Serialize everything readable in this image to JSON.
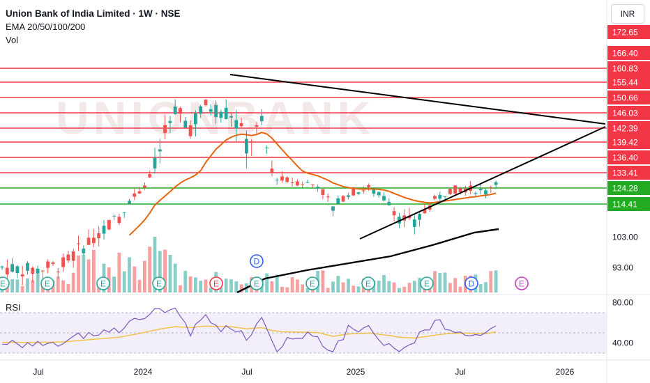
{
  "header": {
    "title": "Union Bank of India Limited · 1W · NSE",
    "indicator": "EMA 20/50/100/200",
    "volume_label": "Vol"
  },
  "currency_button": "INR",
  "rsi_pane": {
    "label": "RSI",
    "ticks": [
      "80.00",
      "40.00"
    ]
  },
  "watermark": "UNIONBANK",
  "chart_data": {
    "type": "candlestick",
    "price_ticks": [
      {
        "v": 172.65,
        "label": "172.65",
        "hl": "red"
      },
      {
        "v": 166.4,
        "label": "166.40",
        "hl": "red"
      },
      {
        "v": 160.83,
        "label": "160.83",
        "hl": "red"
      },
      {
        "v": 155.44,
        "label": "155.44",
        "hl": "red"
      },
      {
        "v": 150.66,
        "label": "150.66",
        "hl": "red"
      },
      {
        "v": 146.03,
        "label": "146.03",
        "hl": "red"
      },
      {
        "v": 142.39,
        "label": "142.39",
        "hl": "red"
      },
      {
        "v": 139.42,
        "label": "139.42",
        "hl": "red"
      },
      {
        "v": 136.4,
        "label": "136.40",
        "hl": "red"
      },
      {
        "v": 133.41,
        "label": "133.41",
        "hl": "red"
      },
      {
        "v": 124.28,
        "label": "124.28",
        "hl": "green"
      },
      {
        "v": 114.41,
        "label": "114.41",
        "hl": "green"
      },
      {
        "v": 103.0,
        "label": "103.00",
        "hl": "none"
      },
      {
        "v": 93.0,
        "label": "93.00",
        "hl": "none"
      }
    ],
    "x_ticks": [
      "Jul",
      "2024",
      "Jul",
      "2025",
      "Jul",
      "2026"
    ],
    "red_levels": [
      160.83,
      155.44,
      150.66,
      146.03,
      142.39,
      139.42,
      136.4,
      133.41
    ],
    "green_levels": [
      124.28,
      114.41
    ],
    "colors": {
      "up": "#26a69a",
      "down": "#ef5350",
      "level_red": "#f23645",
      "level_green": "#22ab22",
      "ema20": "#e8650e",
      "ema200": "#000000",
      "rsi": "#7e57c2",
      "rsi_ma": "#f0c24a"
    }
  }
}
